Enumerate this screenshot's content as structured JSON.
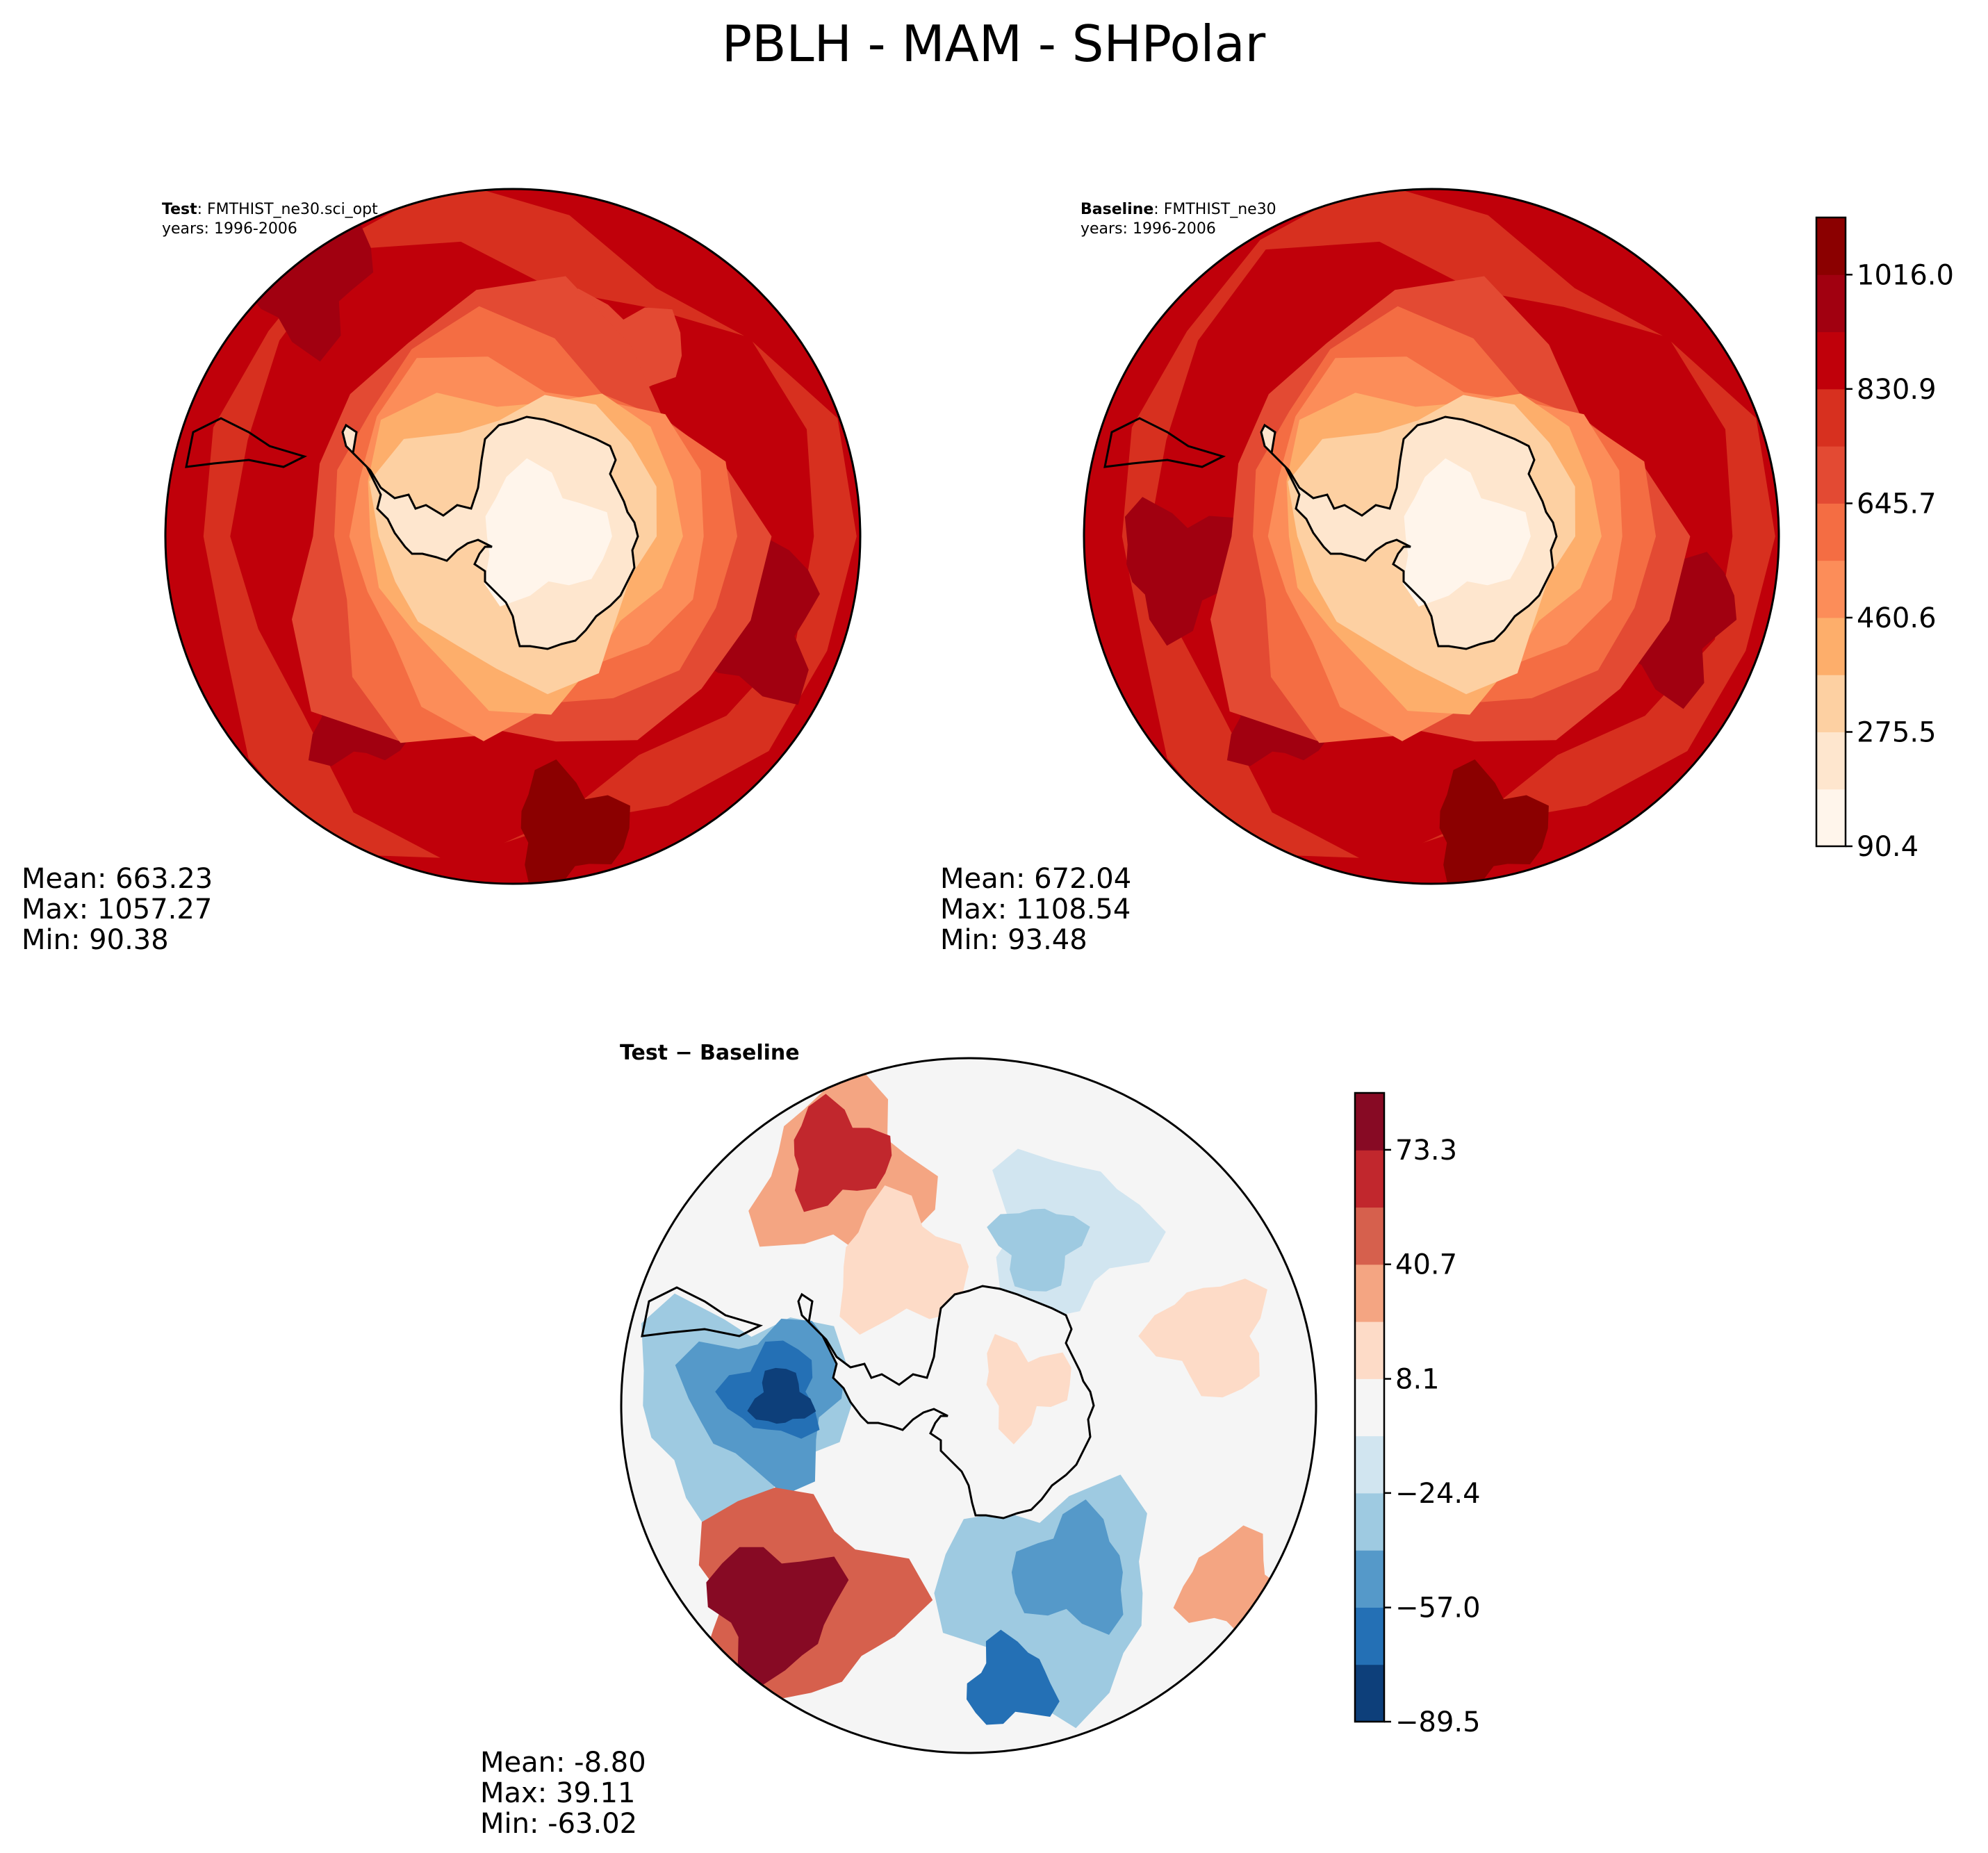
{
  "title": "PBLH - MAM - SHPolar",
  "colors": {
    "seq": [
      "#fff5eb",
      "#fee6ce",
      "#fdd0a2",
      "#fdae6b",
      "#fd8d3c",
      "#f16913",
      "#e3502c",
      "#d52d20",
      "#c21408",
      "#a50f15",
      "#7f0000"
    ],
    "seq_map": [
      "#fff5eb",
      "#fee6ce",
      "#fdd0a2",
      "#fdae6b",
      "#fc8d59",
      "#f46d43",
      "#e34a33",
      "#d7301f",
      "#c0000a",
      "#a10010",
      "#8b0000"
    ],
    "div": [
      "#0d3f7a",
      "#2470b5",
      "#5599c9",
      "#9ecae1",
      "#d1e5f0",
      "#f5f5f5",
      "#fddbc7",
      "#f4a582",
      "#d6604d",
      "#c1272d",
      "#870a24"
    ],
    "coast": "#000000"
  },
  "panels": {
    "test": {
      "label_bold": "Test",
      "label_rest": ": FMTHIST_ne30.sci_opt",
      "years": "years: 1996-2006",
      "mean": "Mean: 663.23",
      "max": "Max: 1057.27",
      "min": "Min: 90.38",
      "field": {
        "ocean": 8,
        "coast_ring": 5,
        "interior": 1,
        "blobs": [
          {
            "lvl": 9,
            "at": "lower-left"
          },
          {
            "lvl": 10,
            "at": "bottom"
          },
          {
            "lvl": 6,
            "at": "upper-right"
          },
          {
            "lvl": 9,
            "at": "top-left"
          },
          {
            "lvl": 9,
            "at": "right"
          }
        ]
      }
    },
    "baseline": {
      "label_bold": "Baseline",
      "label_rest": ": FMTHIST_ne30",
      "years": "years: 1996-2006",
      "mean": "Mean: 672.04",
      "max": "Max: 1108.54",
      "min": "Min: 93.48",
      "field": {
        "ocean": 8,
        "coast_ring": 5,
        "interior": 1,
        "blobs": [
          {
            "lvl": 9,
            "at": "lower-left"
          },
          {
            "lvl": 10,
            "at": "bottom"
          },
          {
            "lvl": 9,
            "at": "left"
          },
          {
            "lvl": 9,
            "at": "right"
          }
        ]
      }
    },
    "diff": {
      "label": "Test − Baseline",
      "mean": "Mean: -8.80",
      "max": "Max: 39.11",
      "min": "Min: -63.02"
    }
  },
  "colorbar_top": {
    "ticks": [
      "90.4",
      "275.5",
      "460.6",
      "645.7",
      "830.9",
      "1016.0"
    ],
    "min": 90.4,
    "max": 1108.6,
    "step": 92.55
  },
  "colorbar_diff": {
    "ticks": [
      "−89.5",
      "−57.0",
      "−24.4",
      "8.1",
      "40.7",
      "73.3"
    ],
    "min": -89.5,
    "max": 89.5,
    "step": 16.3
  }
}
